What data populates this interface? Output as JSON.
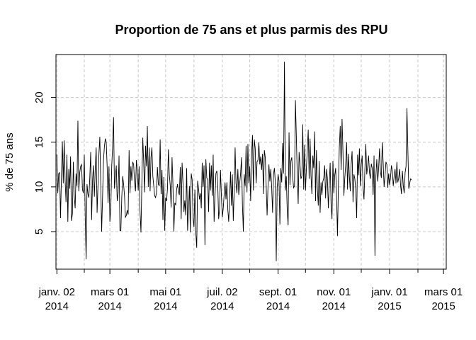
{
  "chart_data": {
    "type": "line",
    "title": "Proportion de 75 ans et plus parmis des RPU",
    "xlabel": "",
    "ylabel": "% de 75 ans",
    "x_range": [
      "2014-01-01",
      "2015-03-04"
    ],
    "ylim": [
      0.8,
      24.8
    ],
    "grid": true,
    "y_ticks": [
      5,
      10,
      15,
      20
    ],
    "x_ticks": [
      {
        "date": "2014-01-02",
        "line1": "janv. 02",
        "line2": "2014"
      },
      {
        "date": "2014-03-01",
        "line1": "mars 01",
        "line2": "2014"
      },
      {
        "date": "2014-05-01",
        "line1": "mai 01",
        "line2": "2014"
      },
      {
        "date": "2014-07-02",
        "line1": "juil. 02",
        "line2": "2014"
      },
      {
        "date": "2014-09-01",
        "line1": "sept. 01",
        "line2": "2014"
      },
      {
        "date": "2014-11-01",
        "line1": "nov. 01",
        "line2": "2014"
      },
      {
        "date": "2015-01-01",
        "line1": "janv. 01",
        "line2": "2015"
      },
      {
        "date": "2015-03-01",
        "line1": "mars 01",
        "line2": "2015"
      }
    ],
    "minor_x_ticks": [
      "2014-02-01",
      "2014-04-01",
      "2014-06-01",
      "2014-08-01",
      "2014-10-01",
      "2014-12-01",
      "2015-02-01"
    ],
    "series": [
      {
        "start_date": "2014-01-02",
        "values": [
          13.6,
          9.3,
          11.5,
          11.6,
          6.5,
          11.2,
          15.1,
          10.4,
          15.2,
          10.8,
          8.3,
          13.6,
          6.1,
          12.0,
          9.8,
          13.4,
          6.2,
          7.0,
          12.8,
          9.0,
          7.6,
          11.5,
          10.1,
          17.4,
          9.5,
          11.6,
          12.3,
          12.5,
          9.7,
          9.3,
          13.6,
          6.8,
          1.9,
          10.3,
          9.2,
          8.8,
          11.0,
          13.9,
          6.3,
          10.7,
          12.4,
          8.9,
          12.1,
          14.4,
          7.1,
          10.2,
          13.7,
          15.6,
          10.5,
          5.0,
          8.9,
          13.0,
          14.5,
          15.4,
          15.0,
          12.3,
          8.2,
          12.3,
          6.1,
          7.6,
          12.3,
          14.5,
          17.8,
          9.8,
          11.1,
          12.4,
          8.4,
          9.3,
          13.5,
          5.1,
          5.1,
          8.8,
          11.2,
          10.3,
          9.0,
          6.6,
          6.8,
          7.4,
          6.9,
          14.1,
          9.3,
          12.3,
          10.7,
          12.8,
          12.5,
          10.5,
          9.5,
          13.0,
          11.8,
          9.6,
          12.3,
          7.2,
          4.9,
          10.6,
          15.5,
          12.7,
          9.4,
          14.6,
          12.3,
          16.8,
          10.0,
          14.4,
          9.5,
          13.3,
          14.4,
          11.2,
          10.1,
          9.0,
          8.8,
          9.4,
          12.2,
          10.3,
          10.1,
          15.3,
          9.2,
          11.9,
          6.3,
          11.1,
          5.1,
          8.8,
          8.4,
          9.8,
          14.2,
          11.4,
          10.2,
          7.7,
          13.3,
          10.2,
          5.0,
          8.2,
          8.0,
          9.7,
          10.3,
          9.5,
          9.1,
          12.2,
          6.4,
          12.7,
          10.4,
          7.2,
          8.5,
          6.8,
          12.1,
          5.1,
          7.4,
          10.1,
          4.9,
          11.5,
          10.8,
          6.5,
          5.5,
          9.7,
          4.9,
          3.2,
          10.7,
          9.8,
          8.6,
          9.3,
          7.6,
          12.7,
          10.0,
          12.4,
          3.5,
          13.1,
          11.0,
          10.8,
          7.2,
          12.7,
          9.6,
          12.4,
          9.0,
          13.6,
          6.1,
          8.9,
          11.5,
          11.8,
          10.2,
          6.4,
          7.5,
          11.9,
          9.0,
          6.6,
          7.6,
          9.1,
          10.5,
          8.6,
          10.5,
          7.5,
          6.1,
          8.8,
          11.7,
          7.9,
          11.4,
          6.2,
          9.5,
          14.4,
          10.4,
          9.3,
          12.0,
          9.1,
          10.4,
          11.5,
          13.3,
          8.0,
          5.0,
          11.4,
          10.1,
          14.6,
          9.4,
          14.8,
          10.4,
          12.3,
          8.4,
          13.6,
          15.8,
          9.6,
          15.3,
          14.3,
          10.4,
          12.8,
          13.0,
          15.0,
          12.5,
          13.4,
          11.9,
          13.7,
          9.2,
          14.1,
          13.3,
          10.1,
          6.8,
          10.1,
          12.5,
          10.6,
          12.0,
          10.0,
          7.1,
          11.4,
          12.1,
          10.5,
          1.7,
          9.8,
          11.4,
          10.7,
          5.8,
          12.1,
          10.5,
          14.9,
          11.5,
          24.0,
          9.6,
          11.2,
          7.4,
          5.7,
          16.1,
          10.2,
          12.9,
          13.3,
          11.1,
          9.9,
          10.1,
          19.7,
          15.6,
          11.4,
          8.1,
          13.9,
          12.5,
          10.9,
          11.2,
          17.0,
          9.7,
          14.7,
          9.6,
          12.1,
          14.2,
          16.4,
          10.9,
          15.4,
          11.3,
          9.2,
          13.5,
          12.1,
          16.2,
          8.4,
          14.1,
          9.8,
          7.9,
          12.9,
          7.1,
          10.5,
          9.1,
          10.6,
          11.0,
          12.4,
          8.7,
          12.0,
          10.9,
          7.6,
          10.3,
          12.7,
          8.0,
          6.4,
          12.9,
          9.3,
          11.3,
          12.1,
          9.0,
          4.5,
          10.1,
          14.4,
          16.8,
          11.9,
          17.6,
          13.9,
          9.0,
          11.0,
          12.5,
          15.0,
          9.7,
          13.7,
          11.2,
          9.5,
          12.6,
          14.0,
          8.3,
          11.4,
          10.9,
          9.7,
          6.5,
          13.6,
          11.3,
          14.3,
          10.1,
          12.5,
          13.5,
          9.9,
          8.6,
          12.0,
          14.8,
          11.4,
          12.3,
          13.5,
          11.6,
          10.9,
          12.6,
          12.1,
          9.1,
          13.5,
          2.3,
          11.2,
          13.1,
          10.6,
          12.0,
          14.3,
          11.7,
          11.0,
          15.0,
          12.7,
          10.0,
          11.2,
          12.8,
          12.5,
          9.9,
          11.5,
          10.2,
          11.0,
          12.4,
          11.8,
          10.1,
          11.2,
          12.0,
          10.4,
          12.8,
          10.5,
          11.0,
          12.0,
          10.2,
          9.2,
          11.8,
          10.1,
          9.3,
          11.6,
          12.3,
          18.8,
          14.2,
          9.8,
          10.4,
          10.9,
          10.8
        ]
      }
    ]
  }
}
